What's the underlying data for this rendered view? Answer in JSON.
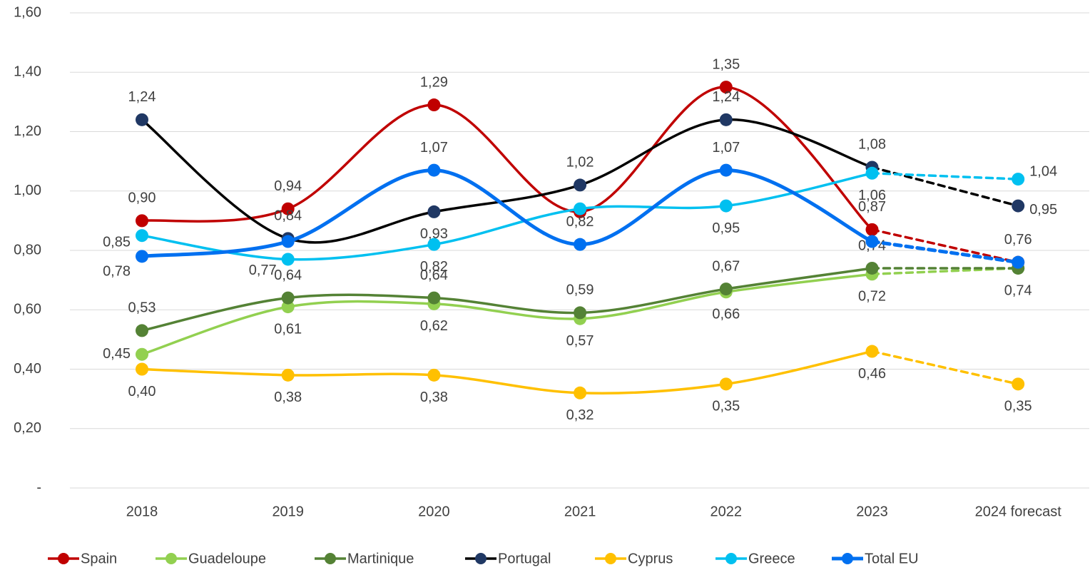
{
  "chart_data": {
    "type": "line",
    "categories": [
      "2018",
      "2019",
      "2020",
      "2021",
      "2022",
      "2023",
      "2024 forecast"
    ],
    "ylim": [
      0,
      1.6
    ],
    "yticks": [
      {
        "value": 0,
        "label": "-"
      },
      {
        "value": 0.2,
        "label": "0,20"
      },
      {
        "value": 0.4,
        "label": "0,40"
      },
      {
        "value": 0.6,
        "label": "0,60"
      },
      {
        "value": 0.8,
        "label": "0,80"
      },
      {
        "value": 1.0,
        "label": "1,00"
      },
      {
        "value": 1.2,
        "label": "1,20"
      },
      {
        "value": 1.4,
        "label": "1,40"
      },
      {
        "value": 1.6,
        "label": "1,60"
      }
    ],
    "grid": true,
    "smooth": true,
    "dashed_last_segment": true,
    "legend": "bottom",
    "series": [
      {
        "name": "Spain",
        "color": "#c00000",
        "values": [
          0.9,
          0.94,
          1.29,
          0.93,
          1.35,
          0.87,
          0.76
        ],
        "value_labels": [
          "0,90",
          "0,94",
          "1,29",
          null,
          "1,35",
          "0,87",
          null
        ]
      },
      {
        "name": "Guadeloupe",
        "color": "#92d050",
        "values": [
          0.45,
          0.61,
          0.62,
          0.57,
          0.66,
          0.72,
          0.74
        ],
        "value_labels": [
          "0,45",
          "0,61",
          "0,62",
          "0,57",
          "0,66",
          "0,72",
          "0,74"
        ]
      },
      {
        "name": "Martinique",
        "color": "#548235",
        "values": [
          0.53,
          0.64,
          0.64,
          0.59,
          0.67,
          0.74,
          0.74
        ],
        "value_labels": [
          "0,53",
          "0,64",
          "0,64",
          "0,59",
          "0,67",
          "0,74",
          null
        ]
      },
      {
        "name": "Portugal",
        "color": "#000000",
        "marker_color": "#203864",
        "values": [
          1.24,
          0.84,
          0.93,
          1.02,
          1.24,
          1.08,
          0.95
        ],
        "value_labels": [
          "1,24",
          "0,84",
          "0,93",
          "1,02",
          "1,24",
          "1,08",
          "0,95"
        ]
      },
      {
        "name": "Cyprus",
        "color": "#ffc000",
        "values": [
          0.4,
          0.38,
          0.38,
          0.32,
          0.35,
          0.46,
          0.35
        ],
        "value_labels": [
          "0,40",
          "0,38",
          "0,38",
          "0,32",
          "0,35",
          "0,46",
          "0,35"
        ]
      },
      {
        "name": "Greece",
        "color": "#00c0f0",
        "values": [
          0.85,
          0.77,
          0.82,
          0.94,
          0.95,
          1.06,
          1.04
        ],
        "value_labels": [
          "0,85",
          "0,77",
          "0,82",
          null,
          "0,95",
          "1,06",
          "1,04"
        ]
      },
      {
        "name": "Total EU",
        "color": "#0070f0",
        "values": [
          0.78,
          0.83,
          1.07,
          0.82,
          1.07,
          0.83,
          0.76
        ],
        "value_labels": [
          "0,78",
          null,
          "1,07",
          "0,82",
          "1,07",
          null,
          "0,76"
        ]
      }
    ]
  }
}
